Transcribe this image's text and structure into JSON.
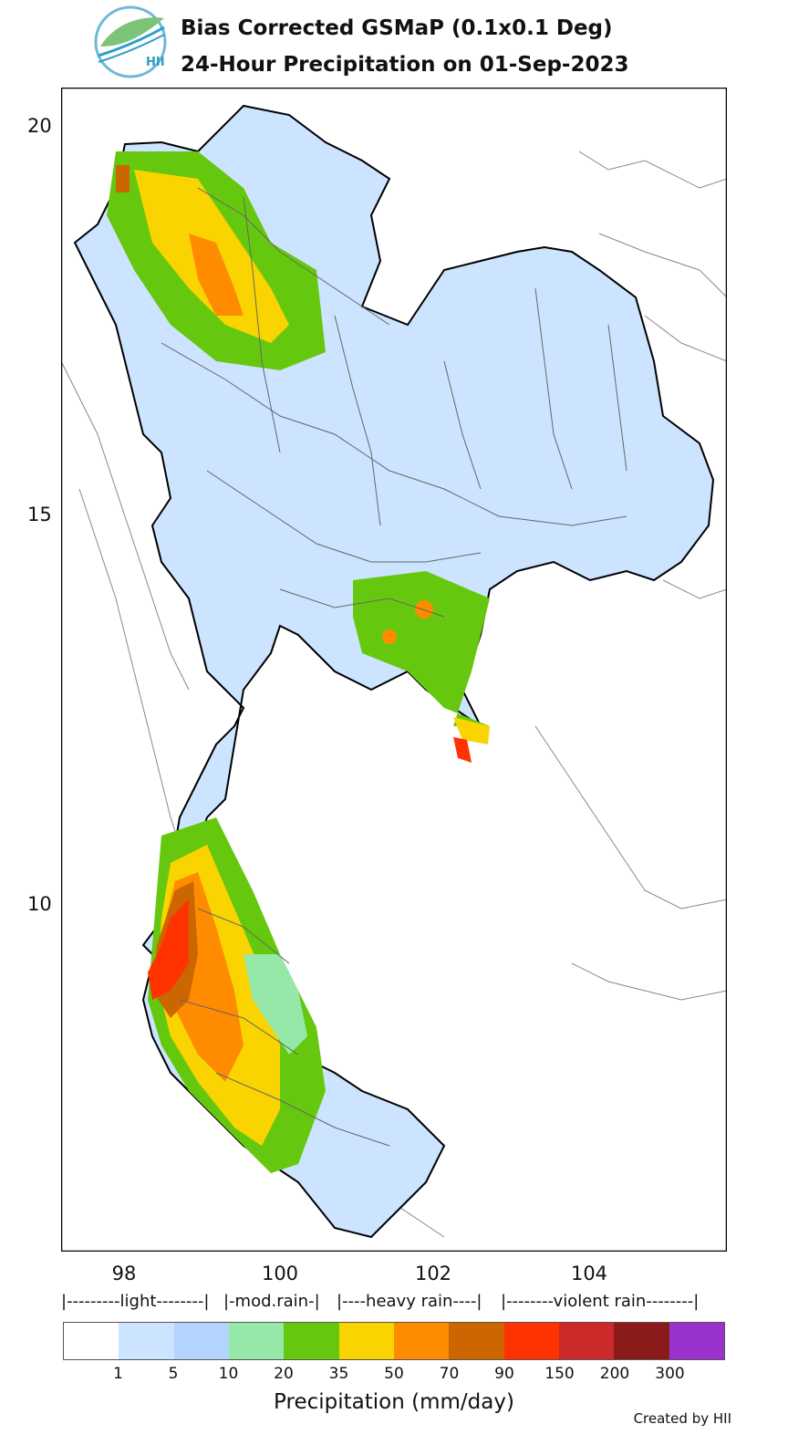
{
  "title_line1": "Bias Corrected GSMaP (0.1x0.1 Deg)",
  "title_line2": "24-Hour Precipitation on 01-Sep-2023",
  "logo_text": "HII",
  "axes": {
    "y_ticks": [
      {
        "value": 20,
        "label": "20"
      },
      {
        "value": 15,
        "label": "15"
      },
      {
        "value": 10,
        "label": "10"
      }
    ],
    "x_ticks": [
      {
        "value": 98,
        "label": "98"
      },
      {
        "value": 100,
        "label": "100"
      },
      {
        "value": 102,
        "label": "102"
      },
      {
        "value": 104,
        "label": "104"
      }
    ],
    "lon_range": [
      97.0,
      105.7
    ],
    "lat_range": [
      5.3,
      20.5
    ]
  },
  "categories": [
    {
      "label": "|---------light--------|",
      "from": 0,
      "to": 4
    },
    {
      "label": "|-mod.rain-|",
      "from": 4,
      "to": 6
    },
    {
      "label": "|----heavy rain----|",
      "from": 6,
      "to": 9
    },
    {
      "label": "|--------violent rain--------|",
      "from": 9,
      "to": 12
    }
  ],
  "legend": {
    "colors": [
      "#ffffff",
      "#cce4ff",
      "#b3d4ff",
      "#96e8a8",
      "#66c80e",
      "#fad400",
      "#ff8c00",
      "#cc6600",
      "#ff3300",
      "#cc2a2a",
      "#8b1a1a",
      "#9933cc"
    ],
    "ticks": [
      "1",
      "5",
      "10",
      "20",
      "35",
      "50",
      "70",
      "90",
      "150",
      "200",
      "300"
    ],
    "title": "Precipitation (mm/day)"
  },
  "credit": "Created by HII"
}
